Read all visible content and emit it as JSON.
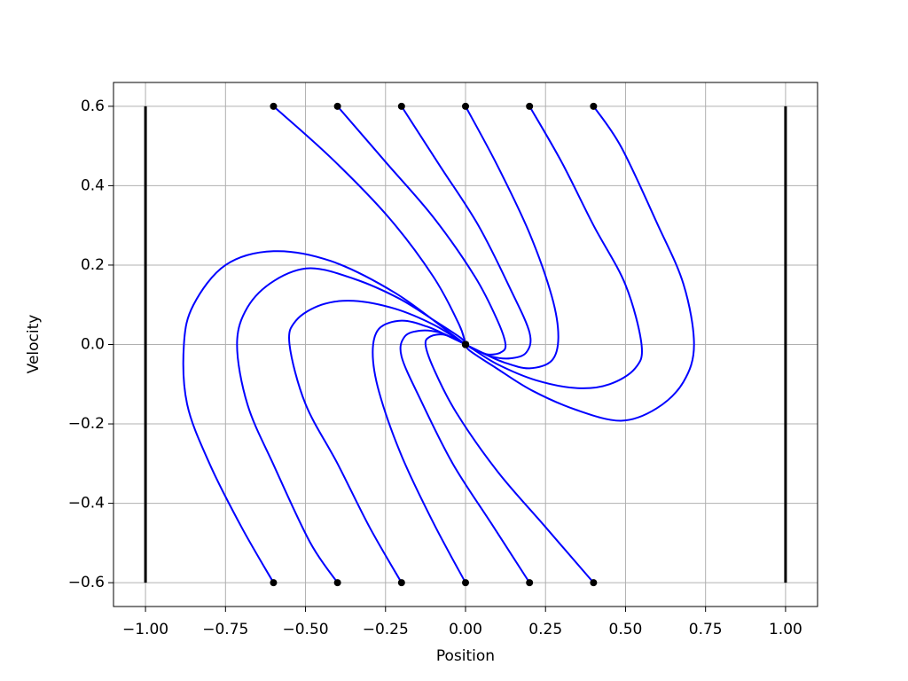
{
  "chart_data": {
    "type": "line",
    "xlabel": "Position",
    "ylabel": "Velocity",
    "xlim": [
      -1.1,
      1.1
    ],
    "ylim": [
      -0.66,
      0.66
    ],
    "xticks": [
      {
        "value": -1,
        "label": "−1.00"
      },
      {
        "value": -0.75,
        "label": "−0.75"
      },
      {
        "value": -0.5,
        "label": "−0.50"
      },
      {
        "value": -0.25,
        "label": "−0.25"
      },
      {
        "value": 0,
        "label": "0.00"
      },
      0.25,
      {
        "value": 0.5,
        "label": "0.50"
      },
      0.75,
      {
        "value": 1,
        "label": "1.00"
      }
    ],
    "yticks": [
      {
        "value": -0.6,
        "label": "−0.6"
      },
      {
        "value": -0.4,
        "label": "−0.4"
      },
      {
        "value": -0.2,
        "label": "−0.2"
      },
      {
        "value": 0,
        "label": "0.0"
      },
      0.2,
      0.4,
      0.6
    ],
    "grid": true,
    "series": [
      {
        "color": "#0000ff",
        "x": [
          0.4,
          0.486,
          0.597,
          0.681,
          0.714,
          0.681,
          0.597,
          0.486,
          0.347,
          0.208,
          0.097,
          0.014,
          0
        ],
        "y": [
          0.6,
          0.498,
          0.308,
          0.152,
          0,
          -0.094,
          -0.161,
          -0.192,
          -0.165,
          -0.116,
          -0.06,
          -0.016,
          0
        ]
      },
      {
        "color": "#0000ff",
        "x": [
          0.2,
          0.3,
          0.4,
          0.5,
          0.55,
          0.53,
          0.45,
          0.35,
          0.22,
          0.1,
          0.02,
          0
        ],
        "y": [
          0.6,
          0.46,
          0.3,
          0.15,
          0,
          -0.06,
          -0.1,
          -0.11,
          -0.09,
          -0.05,
          -0.01,
          0
        ]
      },
      {
        "color": "#0000ff",
        "x": [
          0,
          0.1,
          0.2,
          0.27,
          0.29,
          0.27,
          0.2,
          0.12,
          0.05,
          0
        ],
        "y": [
          0.6,
          0.45,
          0.28,
          0.12,
          0.02,
          -0.04,
          -0.06,
          -0.045,
          -0.02,
          0
        ]
      },
      {
        "color": "#0000ff",
        "x": [
          -0.2,
          -0.08,
          0.04,
          0.14,
          0.2,
          0.19,
          0.14,
          0.08,
          0.03,
          0
        ],
        "y": [
          0.6,
          0.45,
          0.3,
          0.14,
          0.03,
          -0.02,
          -0.035,
          -0.03,
          -0.012,
          0
        ]
      },
      {
        "color": "#0000ff",
        "x": [
          -0.4,
          -0.25,
          -0.1,
          0.03,
          0.1,
          0.125,
          0.11,
          0.07,
          0.03,
          0
        ],
        "y": [
          0.6,
          0.46,
          0.32,
          0.17,
          0.06,
          0,
          -0.02,
          -0.025,
          -0.012,
          0
        ]
      },
      {
        "color": "#0000ff",
        "x": [
          -0.6,
          -0.42,
          -0.24,
          -0.1,
          -0.02,
          0
        ],
        "y": [
          0.6,
          0.47,
          0.32,
          0.17,
          0.05,
          0
        ]
      },
      {
        "color": "#0000ff",
        "x": [
          -0.4,
          -0.486,
          -0.597,
          -0.681,
          -0.714,
          -0.681,
          -0.597,
          -0.486,
          -0.347,
          -0.208,
          -0.097,
          -0.014,
          0
        ],
        "y": [
          -0.6,
          -0.498,
          -0.308,
          -0.152,
          0,
          0.094,
          0.161,
          0.192,
          0.165,
          0.116,
          0.06,
          0.016,
          0
        ]
      },
      {
        "color": "#0000ff",
        "x": [
          -0.6,
          -0.7,
          -0.8,
          -0.87,
          -0.88,
          -0.85,
          -0.75,
          -0.6,
          -0.42,
          -0.22,
          -0.05,
          0
        ],
        "y": [
          -0.6,
          -0.46,
          -0.3,
          -0.15,
          0,
          0.1,
          0.2,
          0.235,
          0.21,
          0.13,
          0.03,
          0
        ]
      },
      {
        "color": "#0000ff",
        "x": [
          -0.2,
          -0.3,
          -0.4,
          -0.5,
          -0.55,
          -0.53,
          -0.45,
          -0.35,
          -0.22,
          -0.1,
          -0.02,
          0
        ],
        "y": [
          -0.6,
          -0.46,
          -0.3,
          -0.15,
          0,
          0.06,
          0.1,
          0.11,
          0.09,
          0.05,
          0.01,
          0
        ]
      },
      {
        "color": "#0000ff",
        "x": [
          0,
          -0.1,
          -0.2,
          -0.27,
          -0.29,
          -0.27,
          -0.2,
          -0.12,
          -0.05,
          0
        ],
        "y": [
          -0.6,
          -0.45,
          -0.28,
          -0.12,
          -0.02,
          0.04,
          0.06,
          0.045,
          0.02,
          0
        ]
      },
      {
        "color": "#0000ff",
        "x": [
          0.2,
          0.08,
          -0.04,
          -0.14,
          -0.2,
          -0.19,
          -0.14,
          -0.08,
          -0.03,
          0
        ],
        "y": [
          -0.6,
          -0.45,
          -0.3,
          -0.14,
          -0.03,
          0.02,
          0.035,
          0.03,
          0.012,
          0
        ]
      },
      {
        "color": "#0000ff",
        "x": [
          0.4,
          0.25,
          0.1,
          -0.03,
          -0.1,
          -0.125,
          -0.11,
          -0.07,
          -0.03,
          0
        ],
        "y": [
          -0.6,
          -0.46,
          -0.32,
          -0.17,
          -0.06,
          0,
          0.02,
          0.025,
          0.012,
          0
        ]
      }
    ],
    "walls": [
      {
        "color": "#000000",
        "x": [
          -1,
          -1
        ],
        "y": [
          -0.6,
          0.6
        ]
      },
      {
        "color": "#000000",
        "x": [
          1,
          1
        ],
        "y": [
          -0.6,
          0.6
        ]
      }
    ]
  }
}
